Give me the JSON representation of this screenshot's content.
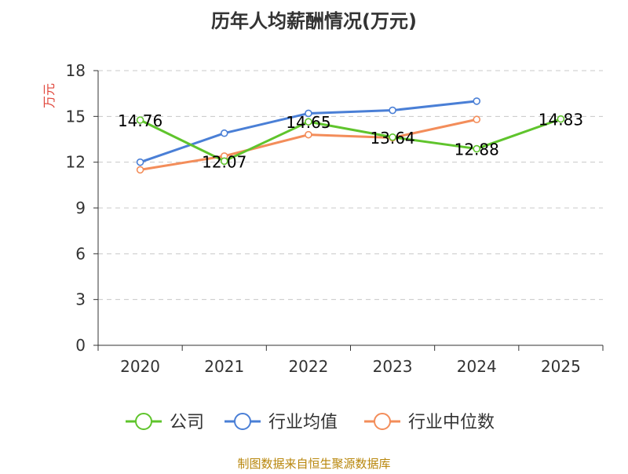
{
  "chart_data": {
    "type": "line",
    "title": "历年人均薪酬情况(万元)",
    "ylabel": "万元",
    "xlabel": "",
    "categories": [
      "2020",
      "2021",
      "2022",
      "2023",
      "2024",
      "2025"
    ],
    "ylim": [
      0,
      18
    ],
    "yticks": [
      "0",
      "3",
      "6",
      "9",
      "12",
      "15",
      "18"
    ],
    "grid": true,
    "legend_position": "bottom",
    "series": [
      {
        "name": "公司",
        "color": "#5fc42c",
        "values": [
          14.76,
          12.07,
          14.65,
          13.64,
          12.88,
          14.83
        ],
        "labels": [
          "14.76",
          "12.07",
          "14.65",
          "13.64",
          "12.88",
          "14.83"
        ]
      },
      {
        "name": "行业均值",
        "color": "#4a7fd6",
        "values": [
          12.0,
          13.9,
          15.2,
          15.4,
          16.0,
          null
        ]
      },
      {
        "name": "行业中位数",
        "color": "#f38d5a",
        "values": [
          11.5,
          12.4,
          13.8,
          13.6,
          14.8,
          null
        ]
      }
    ]
  },
  "source_text": "制图数据来自恒生聚源数据库",
  "colors": {
    "title": "#333333",
    "axis": "#333333",
    "grid": "#c8c8c8",
    "ylabel": "#e0453a",
    "source": "#b8860b"
  }
}
